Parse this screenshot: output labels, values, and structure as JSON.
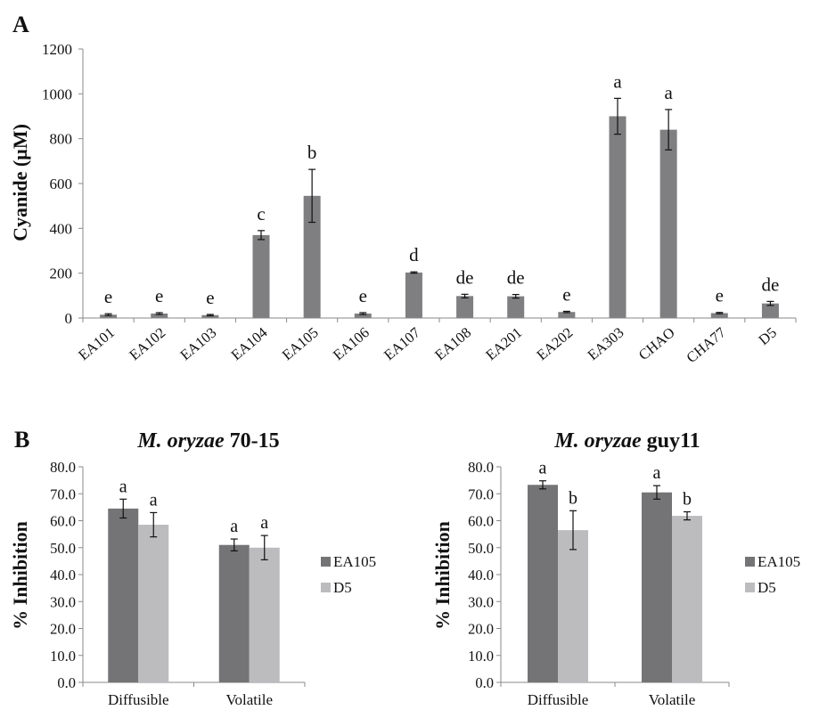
{
  "panel_labels": {
    "a": "A",
    "b": "B"
  },
  "chart_data": [
    {
      "type": "bar",
      "id": "A",
      "ylabel": "Cyanide (µM)",
      "ylim": [
        0,
        1200
      ],
      "yticks": [
        "0",
        "200",
        "400",
        "600",
        "800",
        "1000",
        "1200"
      ],
      "categories": [
        "EA101",
        "EA102",
        "EA103",
        "EA104",
        "EA105",
        "EA106",
        "EA107",
        "EA108",
        "EA201",
        "EA202",
        "EA303",
        "CHAO",
        "CHA77",
        "D5"
      ],
      "values": [
        15,
        20,
        13,
        370,
        545,
        20,
        203,
        98,
        97,
        27,
        900,
        840,
        22,
        65
      ],
      "errors": [
        4,
        4,
        3,
        20,
        118,
        4,
        3,
        8,
        8,
        3,
        80,
        90,
        3,
        9
      ],
      "letters": [
        "e",
        "e",
        "e",
        "c",
        "b",
        "e",
        "d",
        "de",
        "de",
        "e",
        "a",
        "a",
        "e",
        "de"
      ],
      "colors": {
        "bar": "#7f7f81"
      }
    },
    {
      "type": "bar",
      "id": "B1",
      "title_italic": "M. oryzae",
      "title_rest": " 70-15",
      "ylabel": "% Inhibition",
      "ylim": [
        0,
        80
      ],
      "yticks": [
        "0.0",
        "10.0",
        "20.0",
        "30.0",
        "40.0",
        "50.0",
        "60.0",
        "70.0",
        "80.0"
      ],
      "categories": [
        "Diffusible",
        "Volatile"
      ],
      "series": [
        {
          "name": "EA105",
          "values": [
            64.5,
            51.0
          ],
          "errors": [
            3.5,
            2.2
          ],
          "letters": [
            "a",
            "a"
          ],
          "color": "#747476"
        },
        {
          "name": "D5",
          "values": [
            58.5,
            50.0
          ],
          "errors": [
            4.5,
            4.5
          ],
          "letters": [
            "a",
            "a"
          ],
          "color": "#bcbcbf"
        }
      ],
      "legend": "right"
    },
    {
      "type": "bar",
      "id": "B2",
      "title_italic": "M. oryzae",
      "title_rest": " guy11",
      "ylabel": "% Inhibition",
      "ylim": [
        0,
        80
      ],
      "yticks": [
        "0.0",
        "10.0",
        "20.0",
        "30.0",
        "40.0",
        "50.0",
        "60.0",
        "70.0",
        "80.0"
      ],
      "categories": [
        "Diffusible",
        "Volatile"
      ],
      "series": [
        {
          "name": "EA105",
          "values": [
            73.3,
            70.5
          ],
          "errors": [
            1.5,
            2.5
          ],
          "letters": [
            "a",
            "a"
          ],
          "color": "#747476"
        },
        {
          "name": "D5",
          "values": [
            56.5,
            61.8
          ],
          "errors": [
            7.2,
            1.5
          ],
          "letters": [
            "b",
            "b"
          ],
          "color": "#bcbcbf"
        }
      ],
      "legend": "right"
    }
  ]
}
